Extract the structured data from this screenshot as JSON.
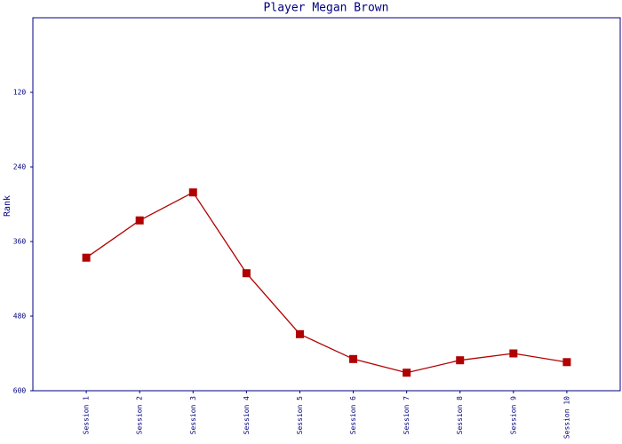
{
  "chart_data": {
    "type": "line",
    "title": "Player Megan Brown",
    "y_label": "Rank",
    "categories": [
      "Session 1",
      "Session 2",
      "Session 3",
      "Session 4",
      "Session 5",
      "Session 6",
      "Session 7",
      "Session 8",
      "Session 9",
      "Session 10"
    ],
    "series": [
      {
        "name": "Rank",
        "color": "#b00000",
        "values": [
          386,
          326,
          281,
          411,
          509,
          549,
          571,
          551,
          540,
          554
        ]
      }
    ],
    "ylim": [
      600,
      0
    ],
    "yticks": [
      120,
      240,
      360,
      480,
      600
    ],
    "grid": false
  }
}
